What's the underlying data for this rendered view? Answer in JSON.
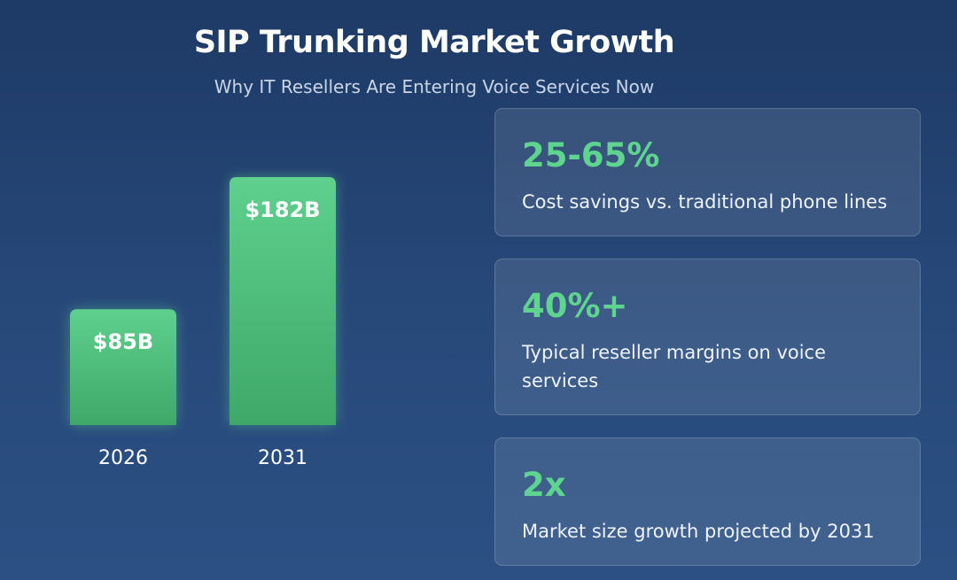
{
  "header": {
    "title": "SIP Trunking Market Growth",
    "subtitle": "Why IT Resellers Are Entering Voice Services Now"
  },
  "chart_data": {
    "type": "bar",
    "categories": [
      "2026",
      "2031"
    ],
    "values": [
      85,
      182
    ],
    "value_labels": [
      "$85B",
      "$182B"
    ],
    "ylim": [
      0,
      182
    ],
    "grid": false,
    "legend": "none",
    "colors": {
      "bar_top": "#5fd08e",
      "bar_bottom": "#3ea868"
    }
  },
  "stats": [
    {
      "value": "25-65%",
      "description": "Cost savings vs. traditional phone lines"
    },
    {
      "value": "40%+",
      "description": "Typical reseller margins on voice services"
    },
    {
      "value": "2x",
      "description": "Market size growth projected by 2031"
    }
  ],
  "colors": {
    "background_top": "#1e3a66",
    "background_bottom": "#2c5083",
    "accent": "#5ed48e"
  }
}
